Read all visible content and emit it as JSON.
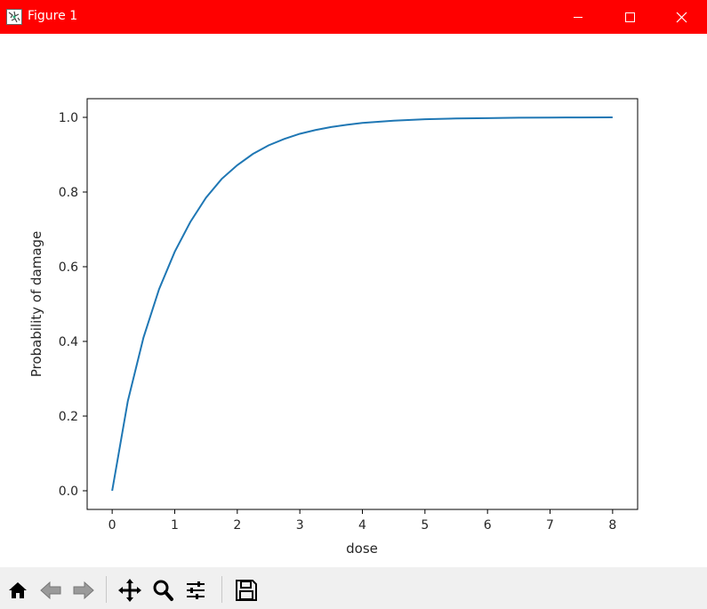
{
  "window": {
    "title": "Figure 1",
    "colors": {
      "titlebar": "#ff0000",
      "title_text": "#ffffff"
    },
    "controls": [
      "minimize-icon",
      "maximize-icon",
      "close-icon"
    ]
  },
  "toolbar": {
    "buttons": [
      "home-icon",
      "back-icon",
      "forward-icon",
      "pan-icon",
      "zoom-icon",
      "configure-subplots-icon",
      "save-icon"
    ]
  },
  "chart_data": {
    "type": "line",
    "title": "",
    "xlabel": "dose",
    "ylabel": "Probability of damage",
    "xlim": [
      -0.4,
      8.4
    ],
    "ylim": [
      -0.05,
      1.05
    ],
    "xticks": [
      0,
      1,
      2,
      3,
      4,
      5,
      6,
      7,
      8
    ],
    "yticks": [
      0.0,
      0.2,
      0.4,
      0.6,
      0.8,
      1.0
    ],
    "xtick_labels": [
      "0",
      "1",
      "2",
      "3",
      "4",
      "5",
      "6",
      "7",
      "8"
    ],
    "ytick_labels": [
      "0.0",
      "0.2",
      "0.4",
      "0.6",
      "0.8",
      "1.0"
    ],
    "grid": false,
    "series": [
      {
        "color": "#1f77b4",
        "x": [
          0,
          0.25,
          0.5,
          0.75,
          1,
          1.25,
          1.5,
          1.75,
          2,
          2.25,
          2.5,
          2.75,
          3,
          3.25,
          3.5,
          3.75,
          4,
          4.5,
          5,
          5.5,
          6,
          6.5,
          7,
          7.5,
          8
        ],
        "y": [
          0.0,
          0.24,
          0.41,
          0.54,
          0.64,
          0.72,
          0.785,
          0.835,
          0.872,
          0.902,
          0.925,
          0.942,
          0.956,
          0.966,
          0.974,
          0.98,
          0.985,
          0.991,
          0.995,
          0.997,
          0.998,
          0.999,
          0.9995,
          0.9997,
          0.9999
        ]
      }
    ]
  }
}
